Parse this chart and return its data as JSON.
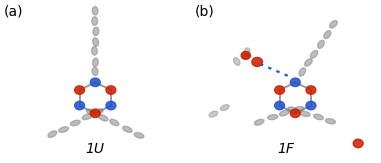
{
  "panel_a_label": "(a)",
  "panel_b_label": "(b)",
  "label_a": "1U",
  "label_b": "1F",
  "label_fontsize": 10,
  "panel_label_fontsize": 10,
  "background_color": "#ffffff",
  "label_color": "#000000",
  "fig_width": 3.81,
  "fig_height": 1.63,
  "dpi": 100,
  "c_color": "#888888",
  "o_color": "#cc2200",
  "n_color": "#2255cc",
  "bond_color": "#777777",
  "dotted_color": "#2255cc"
}
